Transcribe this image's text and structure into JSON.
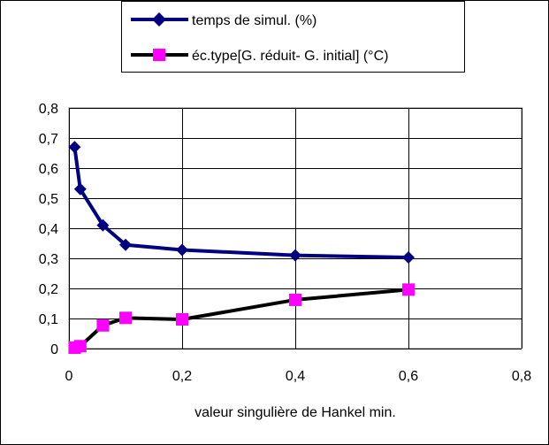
{
  "chart_data": {
    "type": "line",
    "xlabel": "valeur singulière de Hankel min.",
    "ylabel": "",
    "xlim": [
      0,
      0.8
    ],
    "ylim": [
      0,
      0.8
    ],
    "x_ticks": [
      0,
      0.2,
      0.4,
      0.6,
      0.8
    ],
    "y_ticks": [
      0,
      0.1,
      0.2,
      0.3,
      0.4,
      0.5,
      0.6,
      0.7,
      0.8
    ],
    "x_tick_labels": [
      "0",
      "0,2",
      "0,4",
      "0,6",
      "0,8"
    ],
    "y_tick_labels": [
      "0",
      "0,1",
      "0,2",
      "0,3",
      "0,4",
      "0,5",
      "0,6",
      "0,7",
      "0,8"
    ],
    "grid": "horizontal and vertical",
    "legend_position": "top",
    "series": [
      {
        "name": "temps de simul. (%)",
        "line_color": "#000080",
        "marker": "diamond",
        "marker_color": "#000080",
        "x": [
          0.01,
          0.02,
          0.06,
          0.1,
          0.2,
          0.4,
          0.6
        ],
        "y": [
          0.67,
          0.53,
          0.41,
          0.345,
          0.328,
          0.31,
          0.303
        ]
      },
      {
        "name": "éc.type[G. réduit- G. initial] (°C)",
        "line_color": "#000000",
        "marker": "square",
        "marker_color": "#ff00ff",
        "x": [
          0.01,
          0.02,
          0.06,
          0.1,
          0.2,
          0.4,
          0.6
        ],
        "y": [
          0.003,
          0.008,
          0.077,
          0.102,
          0.097,
          0.162,
          0.196
        ]
      }
    ]
  }
}
